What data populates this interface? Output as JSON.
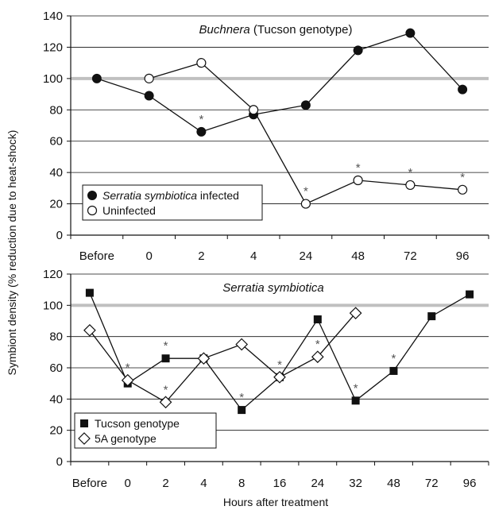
{
  "ylabel": "Symbiont density (% reduction due to heat-shock)",
  "xlabel": "Hours after treatment",
  "colors": {
    "reference": "#c0c0c0",
    "line": "#111111",
    "grid": "#111111"
  },
  "chart_data": [
    {
      "type": "line",
      "title_parts": [
        {
          "text": "Buchnera",
          "italic": true
        },
        {
          "text": " (Tucson genotype)",
          "italic": false
        }
      ],
      "categories": [
        "Before",
        "0",
        "2",
        "4",
        "24",
        "48",
        "72",
        "96"
      ],
      "ylim": [
        0,
        140
      ],
      "yticks": [
        "0",
        "20",
        "40",
        "60",
        "80",
        "100",
        "120",
        "140"
      ],
      "reference_line": 100,
      "grid": true,
      "legend": "bottom-left",
      "series": [
        {
          "legend_parts": [
            {
              "text": "Serratia symbiotica",
              "italic": true
            },
            {
              "text": " infected",
              "italic": false
            }
          ],
          "marker": "filled-circle",
          "values": [
            100,
            89,
            66,
            77,
            83,
            118,
            129,
            93
          ],
          "significant": [
            false,
            false,
            true,
            false,
            false,
            false,
            false,
            false
          ]
        },
        {
          "legend_parts": [
            {
              "text": "Uninfected",
              "italic": false
            }
          ],
          "marker": "open-circle",
          "values": [
            null,
            100,
            110,
            80,
            20,
            35,
            32,
            29
          ],
          "significant": [
            false,
            false,
            false,
            false,
            true,
            true,
            true,
            true
          ]
        }
      ],
      "significance_marker": "*"
    },
    {
      "type": "line",
      "title_parts": [
        {
          "text": "Serratia symbiotica",
          "italic": true
        }
      ],
      "categories": [
        "Before",
        "0",
        "2",
        "4",
        "8",
        "16",
        "24",
        "32",
        "48",
        "72",
        "96"
      ],
      "ylim": [
        0,
        120
      ],
      "yticks": [
        "0",
        "20",
        "40",
        "60",
        "80",
        "100",
        "120"
      ],
      "reference_line": 100,
      "grid": true,
      "legend": "bottom-left",
      "series": [
        {
          "legend_parts": [
            {
              "text": "Tucson genotype",
              "italic": false
            }
          ],
          "marker": "filled-square",
          "values": [
            108,
            50,
            66,
            66,
            33,
            54,
            91,
            39,
            58,
            93,
            107
          ],
          "significant": [
            false,
            false,
            true,
            false,
            true,
            false,
            false,
            true,
            true,
            false,
            false
          ]
        },
        {
          "legend_parts": [
            {
              "text": "5A genotype",
              "italic": false
            }
          ],
          "marker": "open-diamond",
          "values": [
            84,
            52,
            38,
            66,
            75,
            54,
            67,
            95,
            null,
            null,
            null
          ],
          "significant": [
            false,
            true,
            true,
            false,
            false,
            true,
            true,
            false,
            false,
            false,
            false
          ]
        }
      ],
      "significance_marker": "*"
    }
  ]
}
